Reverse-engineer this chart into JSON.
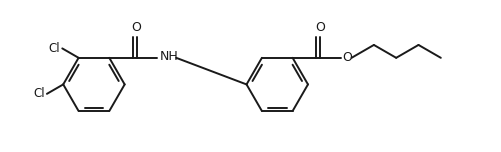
{
  "bg_color": "#ffffff",
  "line_color": "#1a1a1a",
  "line_width": 1.4,
  "figsize": [
    5.02,
    1.52
  ],
  "dpi": 100,
  "xlim": [
    0,
    10.04
  ],
  "ylim": [
    0,
    3.04
  ]
}
